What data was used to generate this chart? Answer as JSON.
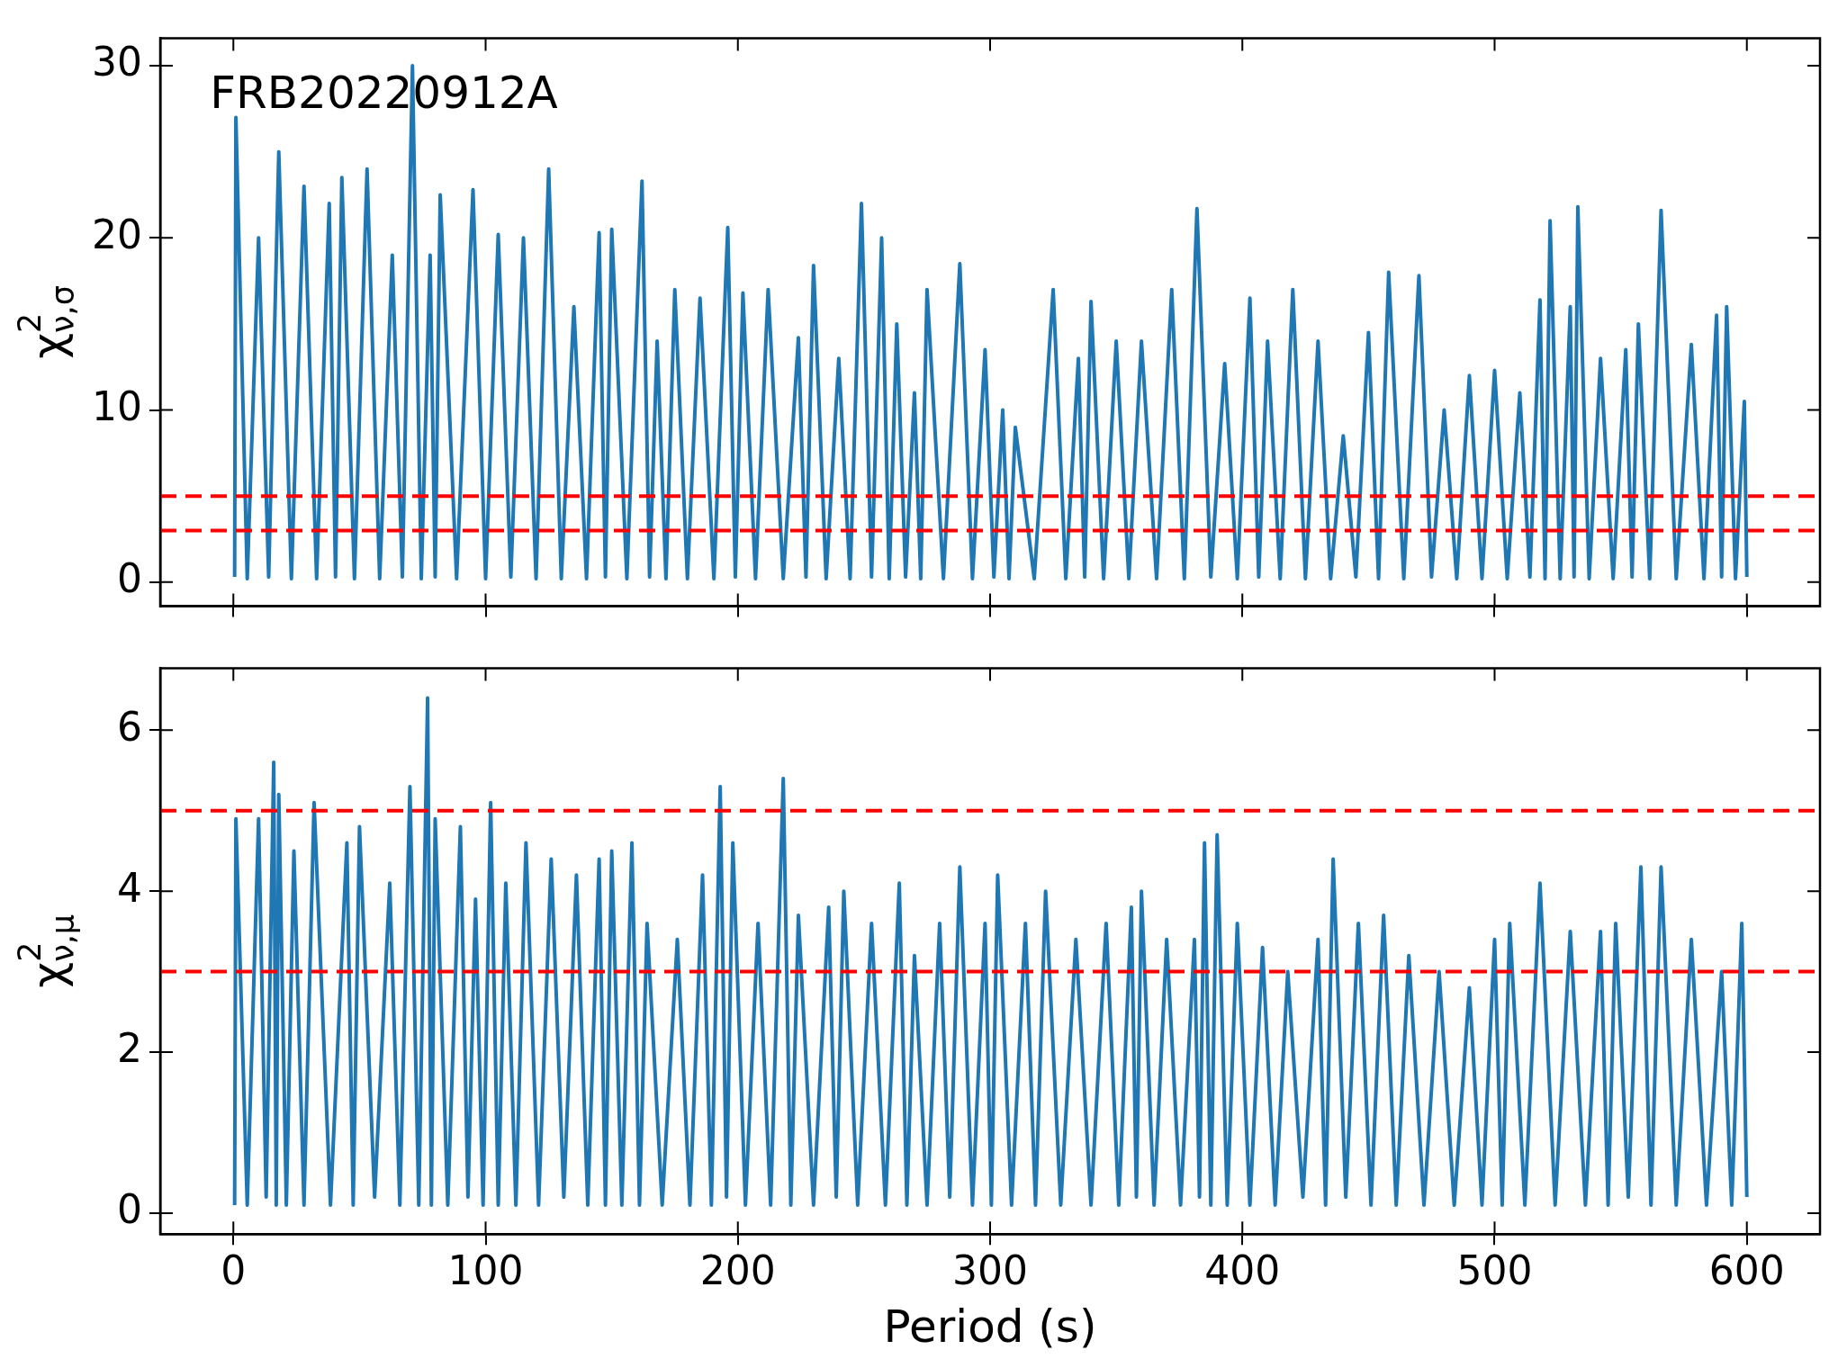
{
  "chart_data": [
    {
      "type": "line",
      "ylabel": "χ$^{2}$$_{ν,σ}$",
      "annotations": [
        "FRB20220912A"
      ],
      "xlim": [
        -29,
        629
      ],
      "ylim": [
        -1.4,
        31.6
      ],
      "xticks": [
        0,
        100,
        200,
        300,
        400,
        500,
        600
      ],
      "yticks": [
        0,
        10,
        20,
        30
      ],
      "tick_labels": "y",
      "marker": "none",
      "line_style": "solid",
      "ref_lines": [
        {
          "axis": "y",
          "value": 5,
          "color": "#ff0000",
          "line_style": "dashed"
        },
        {
          "axis": "y",
          "value": 3,
          "color": "#ff0000",
          "line_style": "dashed"
        }
      ],
      "series": [
        {
          "color": "#1f77b4",
          "x": [
            0.5,
            1,
            5.5,
            10,
            14,
            18,
            23,
            28,
            33,
            38,
            40.5,
            43,
            48,
            53,
            58,
            63,
            67,
            71,
            74.5,
            78,
            80,
            82,
            88.5,
            95,
            100,
            105,
            110,
            115,
            120,
            125,
            130,
            135,
            140,
            145,
            147.5,
            150,
            156,
            162,
            165,
            168,
            171.5,
            175,
            180,
            185,
            190.5,
            196,
            199,
            202,
            207,
            212,
            218,
            224,
            227,
            230,
            235,
            240,
            244.5,
            249,
            253,
            257,
            260,
            263,
            266.5,
            270,
            272.5,
            275,
            281.5,
            288,
            293,
            298,
            301.5,
            305,
            307.5,
            310,
            317.5,
            325,
            330,
            335,
            337.5,
            340,
            345,
            350,
            355,
            360,
            366,
            372,
            377,
            382,
            387.5,
            393,
            398,
            403,
            406.5,
            410,
            415,
            420,
            425,
            430,
            435,
            440,
            445,
            450,
            454,
            458,
            464,
            470,
            475,
            480,
            485,
            490,
            495,
            500,
            505,
            510,
            514,
            518,
            520,
            522,
            526,
            530,
            531.5,
            533,
            537.5,
            542,
            547,
            552,
            554.5,
            557,
            561.5,
            566,
            572,
            578,
            583,
            588,
            590,
            592,
            595.5,
            599,
            600
          ],
          "values": [
            0.3,
            27,
            0.2,
            20,
            0.3,
            25,
            0.2,
            23,
            0.2,
            22,
            0.3,
            23.5,
            0.2,
            24,
            0.2,
            19,
            0.3,
            30,
            0.2,
            19,
            0.3,
            22.5,
            0.2,
            22.8,
            0.2,
            20.2,
            0.3,
            20,
            0.2,
            24,
            0.2,
            16,
            0.2,
            20.3,
            0.3,
            20.5,
            0.2,
            23.3,
            0.3,
            14,
            0.2,
            17,
            0.2,
            16.5,
            0.2,
            20.6,
            0.3,
            16.8,
            0.2,
            17,
            0.2,
            14.2,
            0.3,
            18.4,
            0.2,
            13,
            0.2,
            22,
            0.3,
            20,
            0.2,
            15,
            0.3,
            11,
            0.2,
            17,
            0.2,
            18.5,
            0.2,
            13.5,
            0.3,
            10,
            0.2,
            9,
            0.2,
            17,
            0.2,
            13,
            0.3,
            16.3,
            0.2,
            14,
            0.2,
            14,
            0.2,
            17,
            0.2,
            21.7,
            0.3,
            12.7,
            0.2,
            16.5,
            0.3,
            14,
            0.2,
            17,
            0.2,
            14,
            0.2,
            8.5,
            0.3,
            14.5,
            0.2,
            18,
            0.2,
            17.8,
            0.3,
            10,
            0.2,
            12,
            0.2,
            12.3,
            0.2,
            11,
            0.3,
            16.4,
            0.2,
            21,
            0.2,
            16,
            0.3,
            21.8,
            0.2,
            13,
            0.2,
            13.5,
            0.3,
            15,
            0.2,
            21.6,
            0.2,
            13.8,
            0.2,
            15.5,
            0.3,
            16,
            0.2,
            10.5,
            0.3
          ]
        }
      ]
    },
    {
      "type": "line",
      "xlabel": "Period (s)",
      "ylabel": "χ$^{2}$$_{ν,μ}$",
      "xlim": [
        -29,
        629
      ],
      "ylim": [
        -0.26,
        6.77
      ],
      "xticks": [
        0,
        100,
        200,
        300,
        400,
        500,
        600
      ],
      "yticks": [
        0,
        2,
        4,
        6
      ],
      "marker": "none",
      "line_style": "solid",
      "ref_lines": [
        {
          "axis": "y",
          "value": 5,
          "color": "#ff0000",
          "line_style": "dashed"
        },
        {
          "axis": "y",
          "value": 3,
          "color": "#ff0000",
          "line_style": "dashed"
        }
      ],
      "series": [
        {
          "color": "#1f77b4",
          "x": [
            0.5,
            1,
            5.5,
            10,
            13,
            16,
            17,
            18,
            21,
            24,
            28,
            32,
            38.5,
            45,
            47.5,
            50,
            56,
            62,
            66,
            70,
            73.5,
            77,
            78.5,
            80,
            85,
            90,
            93,
            96,
            99,
            102,
            105,
            108,
            112,
            116,
            121,
            126,
            131,
            136,
            140.5,
            145,
            147.5,
            150,
            154,
            158,
            161,
            164,
            170,
            176,
            181,
            186,
            189.5,
            193,
            195.5,
            198,
            203,
            208,
            213,
            218,
            221,
            224,
            230,
            236,
            239,
            242,
            247.5,
            253,
            258.5,
            264,
            267,
            270,
            275,
            280,
            284,
            288,
            293,
            298,
            300.5,
            303,
            308.5,
            314,
            318,
            322,
            328,
            334,
            340,
            346,
            351,
            356,
            358,
            360,
            365,
            370,
            375.5,
            381,
            383,
            385,
            387.5,
            390,
            394,
            398,
            403,
            408,
            413,
            418,
            424,
            430,
            433,
            436,
            441,
            446,
            451,
            456,
            461,
            466,
            472,
            478,
            484,
            490,
            495,
            500,
            503,
            506,
            512,
            518,
            524,
            530,
            536,
            542,
            545,
            548,
            553,
            558,
            562,
            566,
            572,
            578,
            584,
            590,
            594,
            598,
            600
          ],
          "values": [
            0.1,
            4.9,
            0.1,
            4.9,
            0.2,
            5.6,
            0.1,
            5.2,
            0.1,
            4.5,
            0.1,
            5.1,
            0.1,
            4.6,
            0.1,
            4.8,
            0.2,
            4.1,
            0.1,
            5.3,
            0.1,
            6.4,
            0.1,
            4.9,
            0.1,
            4.8,
            0.2,
            3.9,
            0.1,
            5.1,
            0.1,
            4.1,
            0.1,
            4.6,
            0.1,
            4.4,
            0.2,
            4.2,
            0.1,
            4.4,
            0.1,
            4.5,
            0.1,
            4.6,
            0.1,
            3.6,
            0.1,
            3.4,
            0.1,
            4.2,
            0.1,
            5.3,
            0.2,
            4.6,
            0.1,
            3.6,
            0.1,
            5.4,
            0.1,
            3.7,
            0.1,
            3.8,
            0.2,
            4.0,
            0.1,
            3.6,
            0.1,
            4.1,
            0.1,
            3.2,
            0.1,
            3.6,
            0.2,
            4.3,
            0.1,
            3.6,
            0.1,
            4.2,
            0.1,
            3.6,
            0.1,
            4.0,
            0.1,
            3.4,
            0.1,
            3.6,
            0.1,
            3.8,
            0.2,
            4.0,
            0.1,
            3.4,
            0.1,
            3.4,
            0.2,
            4.6,
            0.1,
            4.7,
            0.1,
            3.6,
            0.1,
            3.3,
            0.1,
            3.0,
            0.2,
            3.4,
            0.1,
            4.4,
            0.2,
            3.6,
            0.1,
            3.7,
            0.1,
            3.2,
            0.1,
            3.0,
            0.1,
            2.8,
            0.1,
            3.4,
            0.1,
            3.6,
            0.1,
            4.1,
            0.1,
            3.5,
            0.1,
            3.5,
            0.1,
            3.6,
            0.2,
            4.3,
            0.1,
            4.3,
            0.1,
            3.4,
            0.1,
            3.0,
            0.1,
            3.6,
            0.2
          ]
        }
      ]
    }
  ]
}
